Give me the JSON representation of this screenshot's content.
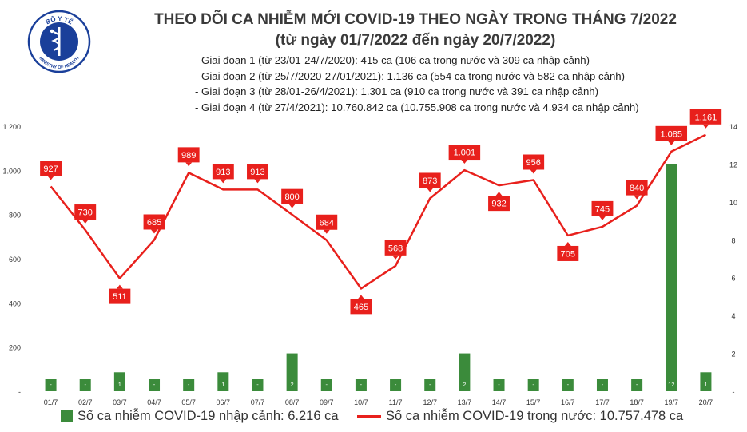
{
  "header": {
    "title": "THEO DÕI CA NHIỄM MỚI COVID-19 THEO NGÀY TRONG THÁNG 7/2022",
    "subtitle": "(từ ngày 01/7/2022 đến ngày 20/7/2022)",
    "stages": [
      "- Giai đoạn 1 (từ 23/01-24/7/2020): 415 ca (106 ca trong nước và 309 ca nhập cảnh)",
      "- Giai đoạn 2 (từ 25/7/2020-27/01/2021): 1.136 ca (554 ca trong nước và 582 ca nhập cảnh)",
      "- Giai đoạn 3 (từ 28/01-26/4/2021): 1.301 ca (910 ca trong nước và 391 ca nhập cảnh)",
      "- Giai đoạn 4 (từ 27/4/2021): 10.760.842 ca (10.755.908 ca trong nước và 4.934 ca nhập cảnh)"
    ]
  },
  "logo": {
    "text_top": "BỘ Y TẾ",
    "text_bottom": "MINISTRY OF HEALTH",
    "color": "#1a3f9a"
  },
  "chart_data": {
    "type": "bar",
    "categories": [
      "01/7",
      "02/7",
      "03/7",
      "04/7",
      "05/7",
      "06/7",
      "07/7",
      "08/7",
      "09/7",
      "10/7",
      "11/7",
      "12/7",
      "13/7",
      "14/7",
      "15/7",
      "16/7",
      "17/7",
      "18/7",
      "19/7",
      "20/7"
    ],
    "series": [
      {
        "name": "Số ca nhiễm COVID-19 nhập cảnh: 6.216 ca",
        "type": "bar",
        "axis": "right",
        "color": "#3b8b3b",
        "values": [
          0,
          0,
          1,
          0,
          0,
          1,
          0,
          2,
          0,
          0,
          0,
          0,
          2,
          0,
          0,
          0,
          0,
          0,
          12,
          1
        ],
        "labels": [
          "-",
          "-",
          "1",
          "-",
          "-",
          "1",
          "-",
          "2",
          "-",
          "-",
          "-",
          "-",
          "2",
          "-",
          "-",
          "-",
          "-",
          "-",
          "12",
          "1"
        ]
      },
      {
        "name": "Số ca nhiễm COVID-19 trong nước: 10.757.478 ca",
        "type": "line",
        "axis": "left",
        "color": "#e8201c",
        "values": [
          927,
          730,
          511,
          685,
          989,
          913,
          913,
          800,
          684,
          465,
          568,
          873,
          1001,
          932,
          956,
          705,
          745,
          840,
          1085,
          1161
        ],
        "labels": [
          "927",
          "730",
          "511",
          "685",
          "989",
          "913",
          "913",
          "800",
          "684",
          "465",
          "568",
          "873",
          "1.001",
          "932",
          "956",
          "705",
          "745",
          "840",
          "1.085",
          "1.161"
        ]
      }
    ],
    "y_left": {
      "ticks": [
        0,
        200,
        400,
        600,
        800,
        1000,
        1200
      ],
      "tick_labels": [
        "-",
        "200",
        "400",
        "600",
        "800",
        "1.000",
        "1.200"
      ]
    },
    "y_right": {
      "ticks": [
        0,
        2,
        4,
        6,
        8,
        10,
        12,
        14
      ],
      "tick_labels": [
        "-",
        "2",
        "4",
        "6",
        "8",
        "10",
        "12",
        "14"
      ]
    },
    "legend_position": "bottom",
    "grid": false
  }
}
